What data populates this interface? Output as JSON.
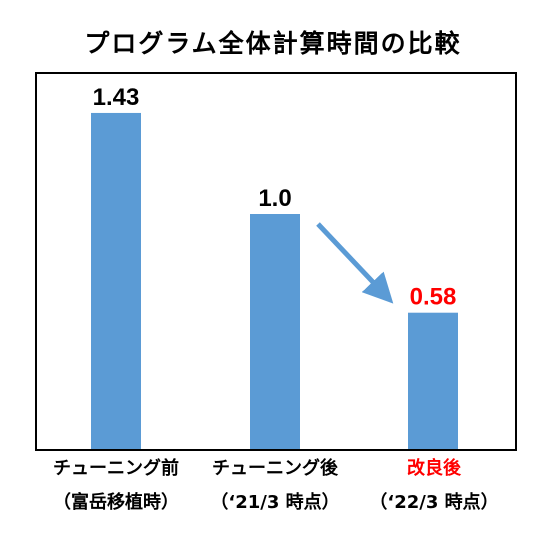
{
  "chart_data": {
    "type": "bar",
    "title": "プログラム全体計算時間の比較",
    "categories": [
      {
        "line1": "チューニング前",
        "line2": "（富岳移植時）",
        "highlight": false
      },
      {
        "line1": "チューニング後",
        "line2": "（‘21/3 時点）",
        "highlight": false
      },
      {
        "line1": "改良後",
        "line2": "（‘22/3 時点）",
        "highlight": true
      }
    ],
    "values": [
      1.43,
      1.0,
      0.58
    ],
    "value_labels": [
      "1.43",
      "1.0",
      "0.58"
    ],
    "ylim": [
      0,
      1.6
    ],
    "grid": false,
    "colors": {
      "bar": "#5b9bd5",
      "arrow": "#5b9bd5",
      "highlight_text": "#ff0000",
      "frame": "#000000"
    },
    "annotations": [
      {
        "type": "arrow",
        "from_category": 1,
        "to_category": 2
      }
    ]
  }
}
